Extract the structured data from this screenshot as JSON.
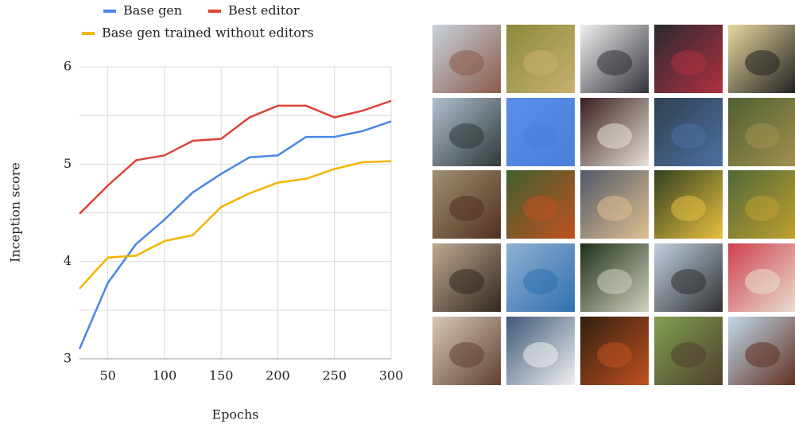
{
  "chart_data": {
    "type": "line",
    "xlabel": "Epochs",
    "ylabel": "Inception score",
    "x": [
      25,
      50,
      75,
      100,
      125,
      150,
      175,
      200,
      225,
      250,
      275,
      300
    ],
    "series": [
      {
        "name": "Base gen",
        "color": "#4a86e8",
        "values": [
          3.1,
          3.78,
          4.18,
          4.43,
          4.71,
          4.9,
          5.07,
          5.09,
          5.28,
          5.28,
          5.34,
          5.44
        ]
      },
      {
        "name": "Best editor",
        "color": "#db4437",
        "values": [
          4.49,
          4.78,
          5.04,
          5.09,
          5.24,
          5.26,
          5.48,
          5.6,
          5.6,
          5.48,
          5.55,
          5.65
        ]
      },
      {
        "name": "Base gen trained without editors",
        "color": "#f4b400",
        "values": [
          3.72,
          4.04,
          4.06,
          4.21,
          4.27,
          4.56,
          4.7,
          4.81,
          4.85,
          4.95,
          5.02,
          5.03
        ]
      }
    ],
    "xlim": [
      25,
      300
    ],
    "xticks": [
      50,
      100,
      150,
      200,
      250,
      300
    ],
    "ylim": [
      3,
      6
    ],
    "yticks": [
      3,
      4,
      5,
      6
    ],
    "grid": true
  }
}
